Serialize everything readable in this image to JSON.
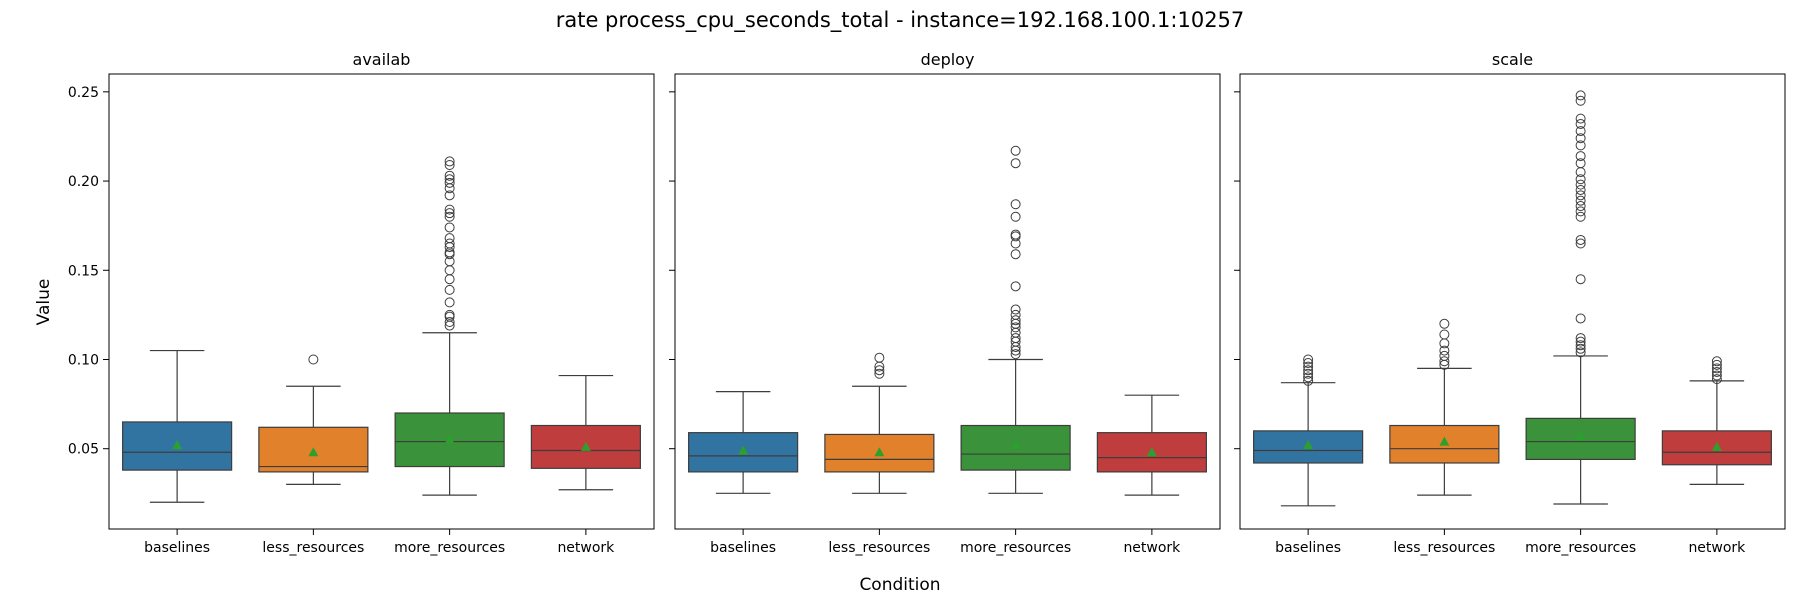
{
  "figure": {
    "title": "rate process_cpu_seconds_total - instance=192.168.100.1:10257",
    "xlabel": "Condition",
    "ylabel": "Value"
  },
  "colors": {
    "baselines": "#3274a1",
    "less_resources": "#e1812c",
    "more_resources": "#3a923a",
    "network": "#c03d3e",
    "mean_marker": "#2ca02c",
    "line": "#3d3d3d"
  },
  "chart_data": [
    {
      "type": "box",
      "title": "availab",
      "xlabel": "Condition",
      "ylabel": "Value",
      "ylim": [
        0.005,
        0.26
      ],
      "yticks": [
        "0.05",
        "0.10",
        "0.15",
        "0.20",
        "0.25"
      ],
      "categories": [
        "baselines",
        "less_resources",
        "more_resources",
        "network"
      ],
      "boxes": [
        {
          "name": "baselines",
          "whisker_low": 0.02,
          "q1": 0.038,
          "median": 0.048,
          "q3": 0.065,
          "whisker_high": 0.105,
          "mean": 0.052,
          "outliers": []
        },
        {
          "name": "less_resources",
          "whisker_low": 0.03,
          "q1": 0.037,
          "median": 0.04,
          "q3": 0.062,
          "whisker_high": 0.085,
          "mean": 0.048,
          "outliers": [
            0.1
          ]
        },
        {
          "name": "more_resources",
          "whisker_low": 0.024,
          "q1": 0.04,
          "median": 0.054,
          "q3": 0.07,
          "whisker_high": 0.115,
          "mean": 0.055,
          "outliers": [
            0.119,
            0.121,
            0.124,
            0.125,
            0.132,
            0.139,
            0.145,
            0.15,
            0.155,
            0.159,
            0.16,
            0.163,
            0.165,
            0.168,
            0.174,
            0.18,
            0.182,
            0.184,
            0.192,
            0.196,
            0.199,
            0.201,
            0.203,
            0.209,
            0.211
          ]
        },
        {
          "name": "network",
          "whisker_low": 0.027,
          "q1": 0.039,
          "median": 0.049,
          "q3": 0.063,
          "whisker_high": 0.091,
          "mean": 0.051,
          "outliers": []
        }
      ]
    },
    {
      "type": "box",
      "title": "deploy",
      "xlabel": "Condition",
      "ylabel": "Value",
      "ylim": [
        0.005,
        0.26
      ],
      "yticks": [
        "0.05",
        "0.10",
        "0.15",
        "0.20",
        "0.25"
      ],
      "categories": [
        "baselines",
        "less_resources",
        "more_resources",
        "network"
      ],
      "boxes": [
        {
          "name": "baselines",
          "whisker_low": 0.025,
          "q1": 0.037,
          "median": 0.046,
          "q3": 0.059,
          "whisker_high": 0.082,
          "mean": 0.049,
          "outliers": []
        },
        {
          "name": "less_resources",
          "whisker_low": 0.025,
          "q1": 0.037,
          "median": 0.044,
          "q3": 0.058,
          "whisker_high": 0.085,
          "mean": 0.048,
          "outliers": [
            0.092,
            0.094,
            0.096,
            0.101
          ]
        },
        {
          "name": "more_resources",
          "whisker_low": 0.025,
          "q1": 0.038,
          "median": 0.047,
          "q3": 0.063,
          "whisker_high": 0.1,
          "mean": 0.052,
          "outliers": [
            0.103,
            0.105,
            0.107,
            0.11,
            0.112,
            0.115,
            0.118,
            0.12,
            0.122,
            0.125,
            0.128,
            0.141,
            0.159,
            0.165,
            0.169,
            0.17,
            0.18,
            0.187,
            0.21,
            0.217
          ]
        },
        {
          "name": "network",
          "whisker_low": 0.024,
          "q1": 0.037,
          "median": 0.045,
          "q3": 0.059,
          "whisker_high": 0.08,
          "mean": 0.048,
          "outliers": []
        }
      ]
    },
    {
      "type": "box",
      "title": "scale",
      "xlabel": "Condition",
      "ylabel": "Value",
      "ylim": [
        0.005,
        0.26
      ],
      "yticks": [
        "0.05",
        "0.10",
        "0.15",
        "0.20",
        "0.25"
      ],
      "categories": [
        "baselines",
        "less_resources",
        "more_resources",
        "network"
      ],
      "boxes": [
        {
          "name": "baselines",
          "whisker_low": 0.018,
          "q1": 0.042,
          "median": 0.049,
          "q3": 0.06,
          "whisker_high": 0.087,
          "mean": 0.052,
          "outliers": [
            0.088,
            0.09,
            0.092,
            0.094,
            0.096,
            0.098,
            0.1
          ]
        },
        {
          "name": "less_resources",
          "whisker_low": 0.024,
          "q1": 0.042,
          "median": 0.05,
          "q3": 0.063,
          "whisker_high": 0.095,
          "mean": 0.054,
          "outliers": [
            0.097,
            0.099,
            0.102,
            0.105,
            0.109,
            0.114,
            0.12
          ]
        },
        {
          "name": "more_resources",
          "whisker_low": 0.019,
          "q1": 0.044,
          "median": 0.054,
          "q3": 0.067,
          "whisker_high": 0.102,
          "mean": 0.057,
          "outliers": [
            0.104,
            0.106,
            0.108,
            0.11,
            0.112,
            0.123,
            0.145,
            0.165,
            0.167,
            0.18,
            0.183,
            0.186,
            0.189,
            0.192,
            0.195,
            0.198,
            0.201,
            0.205,
            0.21,
            0.214,
            0.22,
            0.224,
            0.228,
            0.232,
            0.235,
            0.245,
            0.248
          ]
        },
        {
          "name": "network",
          "whisker_low": 0.03,
          "q1": 0.041,
          "median": 0.048,
          "q3": 0.06,
          "whisker_high": 0.088,
          "mean": 0.051,
          "outliers": [
            0.089,
            0.091,
            0.093,
            0.095,
            0.097,
            0.099
          ]
        }
      ]
    }
  ]
}
